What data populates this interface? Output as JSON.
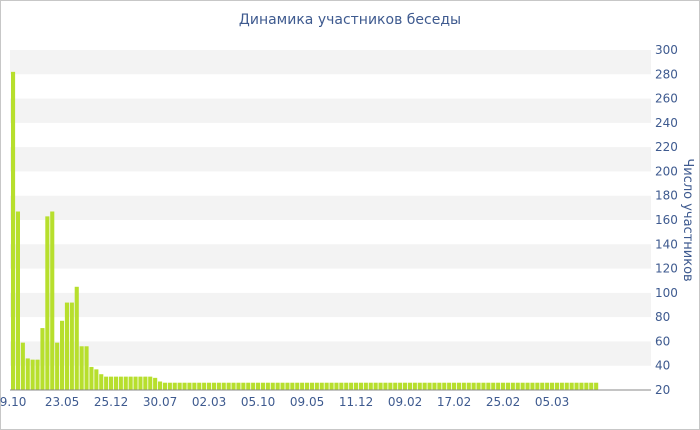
{
  "chart_data": {
    "type": "bar",
    "title": "Динамика участников беседы",
    "ylabel": "Число участников",
    "xlabel": "",
    "ylim": [
      20,
      300
    ],
    "yticks": [
      20,
      40,
      60,
      80,
      100,
      120,
      140,
      160,
      180,
      200,
      220,
      240,
      260,
      280,
      300
    ],
    "y_axis_position": "right",
    "grid": "horizontal-bands",
    "x_tick_labels": [
      "9.10",
      "23.05",
      "25.12",
      "30.07",
      "02.03",
      "05.10",
      "09.05",
      "11.12",
      "09.02",
      "17.02",
      "25.02",
      "05.03"
    ],
    "x_tick_index": [
      0,
      10,
      20,
      30,
      40,
      50,
      60,
      70,
      80,
      90,
      100,
      110
    ],
    "bar_color": "#b7df2d",
    "band_color": "#f3f3f3",
    "text_color": "#3e5a8f",
    "values": [
      282,
      167,
      59,
      46,
      45,
      45,
      71,
      163,
      167,
      59,
      77,
      92,
      92,
      105,
      56,
      56,
      39,
      37,
      33,
      31,
      31,
      31,
      31,
      31,
      31,
      31,
      31,
      31,
      31,
      30,
      27,
      26,
      26,
      26,
      26,
      26,
      26,
      26,
      26,
      26,
      26,
      26,
      26,
      26,
      26,
      26,
      26,
      26,
      26,
      26,
      26,
      26,
      26,
      26,
      26,
      26,
      26,
      26,
      26,
      26,
      26,
      26,
      26,
      26,
      26,
      26,
      26,
      26,
      26,
      26,
      26,
      26,
      26,
      26,
      26,
      26,
      26,
      26,
      26,
      26,
      26,
      26,
      26,
      26,
      26,
      26,
      26,
      26,
      26,
      26,
      26,
      26,
      26,
      26,
      26,
      26,
      26,
      26,
      26,
      26,
      26,
      26,
      26,
      26,
      26,
      26,
      26,
      26,
      26,
      26,
      26,
      26,
      26,
      26,
      26,
      26,
      26,
      26,
      26,
      26
    ]
  }
}
